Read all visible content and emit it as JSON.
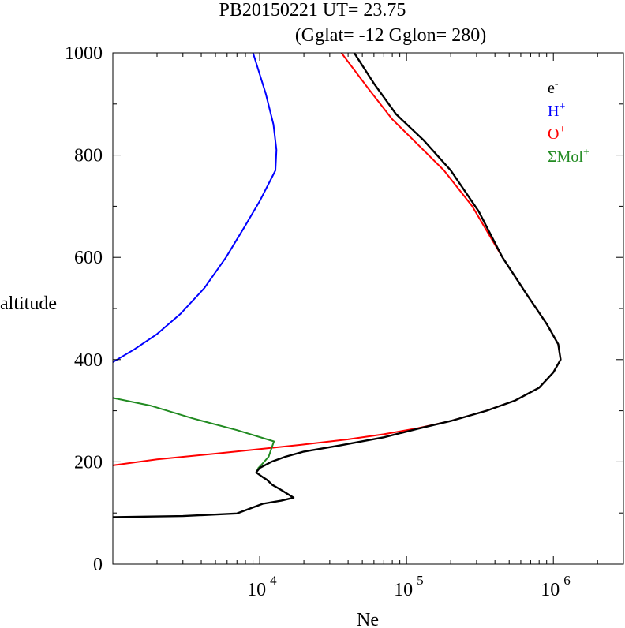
{
  "chart_data": {
    "type": "line",
    "title_line1": "PB20150221   UT=  23.75",
    "title_line2": "(Gglat= -12   Gglon=  280)",
    "xlabel": "Ne",
    "ylabel": "altitude",
    "x_scale": "log",
    "xlim": [
      1000,
      3000000
    ],
    "ylim": [
      0,
      1000
    ],
    "x_tick_labels": [
      {
        "value": 10000,
        "base": "10",
        "exp": "4"
      },
      {
        "value": 100000,
        "base": "10",
        "exp": "5"
      },
      {
        "value": 1000000,
        "base": "10",
        "exp": "6"
      }
    ],
    "y_tick_labels": [
      {
        "value": 0,
        "label": "0"
      },
      {
        "value": 200,
        "label": "200"
      },
      {
        "value": 400,
        "label": "400"
      },
      {
        "value": 600,
        "label": "600"
      },
      {
        "value": 800,
        "label": "800"
      },
      {
        "value": 1000,
        "label": "1000"
      }
    ],
    "legend_position": "top-right",
    "series": [
      {
        "name": "O+",
        "legend_base": "O",
        "legend_sup": "+",
        "color": "#ff0000",
        "points": [
          [
            1000,
            193
          ],
          [
            2000,
            205
          ],
          [
            5000,
            216
          ],
          [
            10000,
            225
          ],
          [
            20000,
            234
          ],
          [
            40000,
            244
          ],
          [
            70000,
            254
          ],
          [
            120000,
            266
          ],
          [
            200000,
            280
          ],
          [
            350000,
            300
          ],
          [
            550000,
            320
          ],
          [
            800000,
            345
          ],
          [
            1000000,
            375
          ],
          [
            1120000,
            400
          ],
          [
            1080000,
            430
          ],
          [
            900000,
            470
          ],
          [
            650000,
            530
          ],
          [
            450000,
            600
          ],
          [
            280000,
            700
          ],
          [
            180000,
            770
          ],
          [
            120000,
            820
          ],
          [
            80000,
            870
          ],
          [
            55000,
            930
          ],
          [
            36000,
            1000
          ]
        ]
      },
      {
        "name": "H+",
        "legend_base": "H",
        "legend_sup": "+",
        "color": "#0000ff",
        "points": [
          [
            1000,
            395
          ],
          [
            1400,
            420
          ],
          [
            2000,
            450
          ],
          [
            2900,
            490
          ],
          [
            4200,
            540
          ],
          [
            5900,
            600
          ],
          [
            7900,
            660
          ],
          [
            10000,
            710
          ],
          [
            11800,
            750
          ],
          [
            12800,
            770
          ],
          [
            13000,
            810
          ],
          [
            12400,
            860
          ],
          [
            11000,
            920
          ],
          [
            9000,
            1000
          ]
        ]
      },
      {
        "name": "ΣMol+",
        "legend_base": "ΣMol",
        "legend_sup": "+",
        "color": "#228b22",
        "points": [
          [
            1000,
            325
          ],
          [
            1800,
            310
          ],
          [
            3500,
            285
          ],
          [
            7000,
            262
          ],
          [
            12500,
            240
          ],
          [
            11500,
            210
          ],
          [
            10500,
            197
          ],
          [
            9800,
            188
          ],
          [
            9500,
            180
          ]
        ]
      },
      {
        "name": "e-",
        "legend_base": "e",
        "legend_sup": "-",
        "color": "#000000",
        "points": [
          [
            1000,
            92
          ],
          [
            3000,
            94
          ],
          [
            7000,
            99
          ],
          [
            10500,
            118
          ],
          [
            14000,
            124
          ],
          [
            17000,
            130
          ],
          [
            14000,
            145
          ],
          [
            12200,
            155
          ],
          [
            11200,
            165
          ],
          [
            10500,
            170
          ],
          [
            9600,
            178
          ],
          [
            9500,
            180
          ],
          [
            10000,
            188
          ],
          [
            12000,
            200
          ],
          [
            15000,
            210
          ],
          [
            20000,
            220
          ],
          [
            35000,
            232
          ],
          [
            70000,
            248
          ],
          [
            120000,
            265
          ],
          [
            200000,
            280
          ],
          [
            350000,
            300
          ],
          [
            550000,
            320
          ],
          [
            800000,
            345
          ],
          [
            1000000,
            375
          ],
          [
            1120000,
            400
          ],
          [
            1080000,
            430
          ],
          [
            900000,
            470
          ],
          [
            650000,
            530
          ],
          [
            450000,
            600
          ],
          [
            310000,
            690
          ],
          [
            200000,
            770
          ],
          [
            130000,
            830
          ],
          [
            85000,
            880
          ],
          [
            60000,
            940
          ],
          [
            44000,
            1000
          ]
        ]
      }
    ]
  }
}
